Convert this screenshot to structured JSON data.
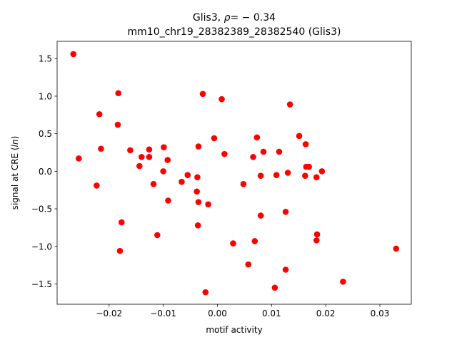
{
  "chart_data": {
    "type": "scatter",
    "title_line1_prefix": "Glis3, ",
    "title_line1_rho_symbol": "ρ",
    "title_line1_rho_value": "= − 0.34",
    "title_line2": "mm10_chr19_28382389_28382540 (Glis3)",
    "xlabel": "motif activity",
    "ylabel_prefix": "signal at CRE (",
    "ylabel_italic": "ln",
    "ylabel_suffix": ")",
    "xlim": [
      -0.0296,
      0.0358
    ],
    "ylim": [
      -1.77,
      1.73
    ],
    "x_ticks": [
      {
        "value": -0.02,
        "label": "−0.02"
      },
      {
        "value": -0.01,
        "label": "−0.01"
      },
      {
        "value": 0.0,
        "label": "0.00"
      },
      {
        "value": 0.01,
        "label": "0.01"
      },
      {
        "value": 0.02,
        "label": "0.02"
      },
      {
        "value": 0.03,
        "label": "0.03"
      }
    ],
    "y_ticks": [
      {
        "value": -1.5,
        "label": "−1.5"
      },
      {
        "value": -1.0,
        "label": "−1.0"
      },
      {
        "value": -0.5,
        "label": "−0.5"
      },
      {
        "value": 0.0,
        "label": "0.0"
      },
      {
        "value": 0.5,
        "label": "0.5"
      },
      {
        "value": 1.0,
        "label": "1.0"
      },
      {
        "value": 1.5,
        "label": "1.5"
      }
    ],
    "grid": false,
    "legend": "none",
    "marker_color": "#ff0000",
    "points": [
      {
        "x": -0.0266,
        "y": 1.56
      },
      {
        "x": -0.0256,
        "y": 0.17
      },
      {
        "x": -0.0223,
        "y": -0.19
      },
      {
        "x": -0.0218,
        "y": 0.76
      },
      {
        "x": -0.0215,
        "y": 0.3
      },
      {
        "x": -0.0183,
        "y": 1.04
      },
      {
        "x": -0.0184,
        "y": 0.62
      },
      {
        "x": -0.0177,
        "y": -0.68
      },
      {
        "x": -0.018,
        "y": -1.06
      },
      {
        "x": -0.0161,
        "y": 0.28
      },
      {
        "x": -0.0144,
        "y": 0.07
      },
      {
        "x": -0.014,
        "y": 0.19
      },
      {
        "x": -0.0126,
        "y": 0.29
      },
      {
        "x": -0.0126,
        "y": 0.19
      },
      {
        "x": -0.0118,
        "y": -0.17
      },
      {
        "x": -0.0111,
        "y": -0.85
      },
      {
        "x": -0.0099,
        "y": 0.32
      },
      {
        "x": -0.01,
        "y": 0.0
      },
      {
        "x": -0.0092,
        "y": 0.15
      },
      {
        "x": -0.0091,
        "y": -0.39
      },
      {
        "x": -0.0066,
        "y": -0.14
      },
      {
        "x": -0.0055,
        "y": -0.05
      },
      {
        "x": -0.0038,
        "y": -0.27
      },
      {
        "x": -0.0037,
        "y": -0.08
      },
      {
        "x": -0.0035,
        "y": 0.33
      },
      {
        "x": -0.0035,
        "y": -0.41
      },
      {
        "x": -0.0036,
        "y": -0.72
      },
      {
        "x": -0.0027,
        "y": 1.03
      },
      {
        "x": -0.0017,
        "y": -0.44
      },
      {
        "x": -0.0022,
        "y": -1.61
      },
      {
        "x": -0.0006,
        "y": 0.44
      },
      {
        "x": 0.0008,
        "y": 0.96
      },
      {
        "x": 0.0013,
        "y": 0.23
      },
      {
        "x": 0.0029,
        "y": -0.96
      },
      {
        "x": 0.0048,
        "y": -0.17
      },
      {
        "x": 0.0057,
        "y": -1.24
      },
      {
        "x": 0.0066,
        "y": 0.19
      },
      {
        "x": 0.0069,
        "y": -0.93
      },
      {
        "x": 0.0073,
        "y": 0.45
      },
      {
        "x": 0.008,
        "y": -0.06
      },
      {
        "x": 0.008,
        "y": -0.59
      },
      {
        "x": 0.0085,
        "y": 0.26
      },
      {
        "x": 0.0106,
        "y": -1.55
      },
      {
        "x": 0.0109,
        "y": -0.05
      },
      {
        "x": 0.0114,
        "y": 0.26
      },
      {
        "x": 0.0126,
        "y": -0.54
      },
      {
        "x": 0.0126,
        "y": -1.31
      },
      {
        "x": 0.013,
        "y": -0.02
      },
      {
        "x": 0.0134,
        "y": 0.89
      },
      {
        "x": 0.0151,
        "y": 0.47
      },
      {
        "x": 0.0162,
        "y": -0.06
      },
      {
        "x": 0.0163,
        "y": 0.36
      },
      {
        "x": 0.0164,
        "y": 0.06
      },
      {
        "x": 0.0169,
        "y": 0.06
      },
      {
        "x": 0.0183,
        "y": -0.08
      },
      {
        "x": 0.0183,
        "y": -0.92
      },
      {
        "x": 0.0184,
        "y": -0.84
      },
      {
        "x": 0.0193,
        "y": 0.0
      },
      {
        "x": 0.0232,
        "y": -1.47
      },
      {
        "x": 0.033,
        "y": -1.03
      }
    ]
  }
}
